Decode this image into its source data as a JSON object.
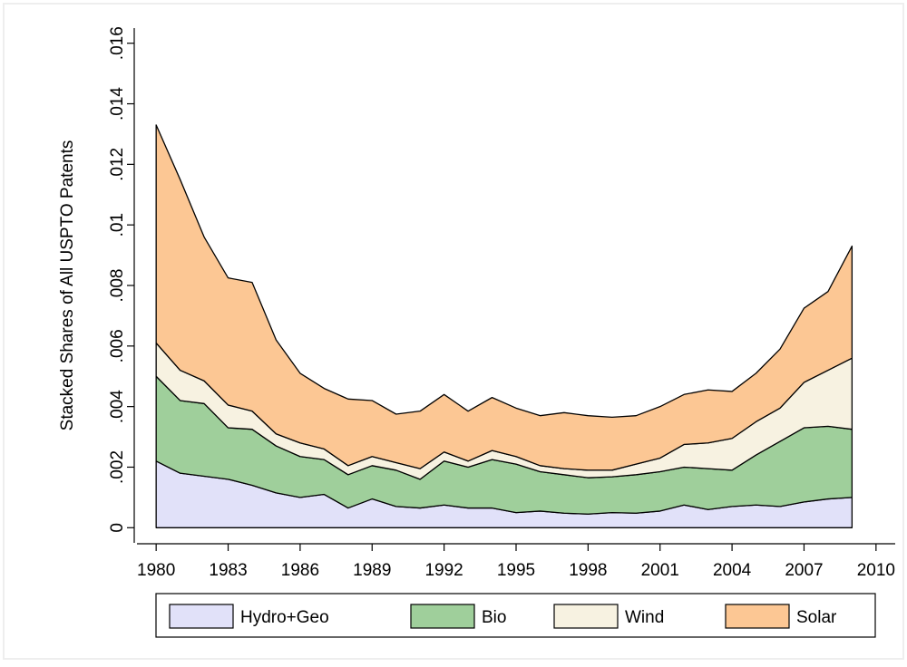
{
  "chart_data": {
    "type": "stacked_area",
    "y_label": "Stacked Shares of All USPTO Patents",
    "x": [
      1980,
      1981,
      1982,
      1983,
      1984,
      1985,
      1986,
      1987,
      1988,
      1989,
      1990,
      1991,
      1992,
      1993,
      1994,
      1995,
      1996,
      1997,
      1998,
      1999,
      2000,
      2001,
      2002,
      2003,
      2004,
      2005,
      2006,
      2007,
      2008,
      2009
    ],
    "series": [
      {
        "name": "Hydro+Geo",
        "color": "#e1e1f9",
        "values": [
          0.0022,
          0.0018,
          0.0017,
          0.0016,
          0.0014,
          0.00115,
          0.001,
          0.0011,
          0.00065,
          0.00095,
          0.0007,
          0.00065,
          0.00075,
          0.00065,
          0.00065,
          0.0005,
          0.00055,
          0.00048,
          0.00045,
          0.0005,
          0.00048,
          0.00055,
          0.00075,
          0.0006,
          0.0007,
          0.00075,
          0.0007,
          0.00085,
          0.00095,
          0.001
        ]
      },
      {
        "name": "Bio",
        "color": "#9fcf9b",
        "values": [
          0.0028,
          0.0024,
          0.0024,
          0.0017,
          0.00185,
          0.00155,
          0.00135,
          0.00115,
          0.0011,
          0.0011,
          0.0012,
          0.00095,
          0.00145,
          0.00135,
          0.0016,
          0.0016,
          0.0013,
          0.00127,
          0.0012,
          0.00118,
          0.00127,
          0.0013,
          0.00125,
          0.00135,
          0.0012,
          0.00165,
          0.00215,
          0.00245,
          0.0024,
          0.00225
        ]
      },
      {
        "name": "Wind",
        "color": "#f7f2e1",
        "values": [
          0.0011,
          0.001,
          0.00075,
          0.00075,
          0.0006,
          0.0004,
          0.00045,
          0.00035,
          0.0003,
          0.0003,
          0.00025,
          0.00035,
          0.0003,
          0.0002,
          0.0003,
          0.00025,
          0.0002,
          0.0002,
          0.00025,
          0.00022,
          0.00035,
          0.00045,
          0.00075,
          0.00085,
          0.00105,
          0.0011,
          0.0011,
          0.0015,
          0.00185,
          0.00235
        ]
      },
      {
        "name": "Solar",
        "color": "#fcc794",
        "values": [
          0.0072,
          0.0063,
          0.00475,
          0.0042,
          0.00425,
          0.0031,
          0.0023,
          0.002,
          0.0022,
          0.00185,
          0.0016,
          0.0019,
          0.0019,
          0.00165,
          0.00175,
          0.0016,
          0.00165,
          0.00185,
          0.0018,
          0.00175,
          0.0016,
          0.0017,
          0.00165,
          0.00175,
          0.00155,
          0.0016,
          0.00195,
          0.00245,
          0.0026,
          0.0037
        ]
      }
    ],
    "xlim": [
      1979.2,
      2010.8
    ],
    "xticks": [
      1980,
      1983,
      1986,
      1989,
      1992,
      1995,
      1998,
      2001,
      2004,
      2007,
      2010
    ],
    "ylim": [
      -0.0005,
      0.0165
    ],
    "yticks": [
      0,
      {
        "value": 0.002,
        "label": ".002"
      },
      {
        "value": 0.004,
        "label": ".004"
      },
      {
        "value": 0.006,
        "label": ".006"
      },
      {
        "value": 0.008,
        "label": ".008"
      },
      {
        "value": 0.01,
        "label": ".01"
      },
      {
        "value": 0.012,
        "label": ".012"
      },
      {
        "value": 0.014,
        "label": ".014"
      },
      {
        "value": 0.016,
        "label": ".016"
      }
    ],
    "legend": "bottom"
  }
}
